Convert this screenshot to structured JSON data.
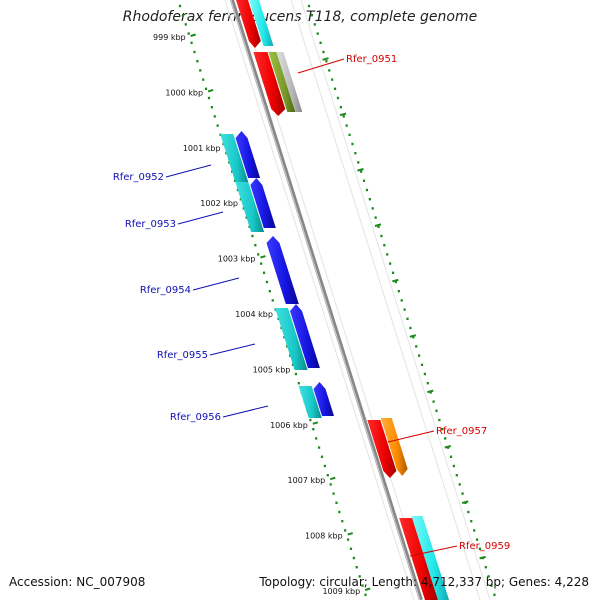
{
  "header": {
    "title": "Rhodoferax ferrireducens T118, complete genome"
  },
  "footer": {
    "accession": "Accession: NC_007908",
    "summary": "Topology: circular; Length: 4,712,337 bp; Genes: 4,228"
  },
  "ruler": {
    "ticks": [
      "999 kbp",
      "1000 kbp",
      "1001 kbp",
      "1002 kbp",
      "1003 kbp",
      "1004 kbp",
      "1005 kbp",
      "1006 kbp",
      "1007 kbp",
      "1008 kbp",
      "1009 kbp"
    ]
  },
  "genes": {
    "forward_strand_labels": [
      "Rfer_0951",
      "Rfer_0957",
      "Rfer_0959"
    ],
    "reverse_strand_labels": [
      "Rfer_0952",
      "Rfer_0953",
      "Rfer_0954",
      "Rfer_0955",
      "Rfer_0956"
    ]
  },
  "colors": {
    "backbone": "#888888",
    "ruler": "#1a8a1a",
    "forward_label": "#d40000",
    "reverse_label": "#1010b4",
    "cds_red": "#ff0000",
    "cds_blue": "#1414e0",
    "cds_cyan": "#19c8c8",
    "cds_light_cyan": "#22e8e8",
    "cds_olive": "#7a9a2a",
    "cds_orange": "#ff8c00",
    "cds_grey": "#b8b8b8"
  }
}
